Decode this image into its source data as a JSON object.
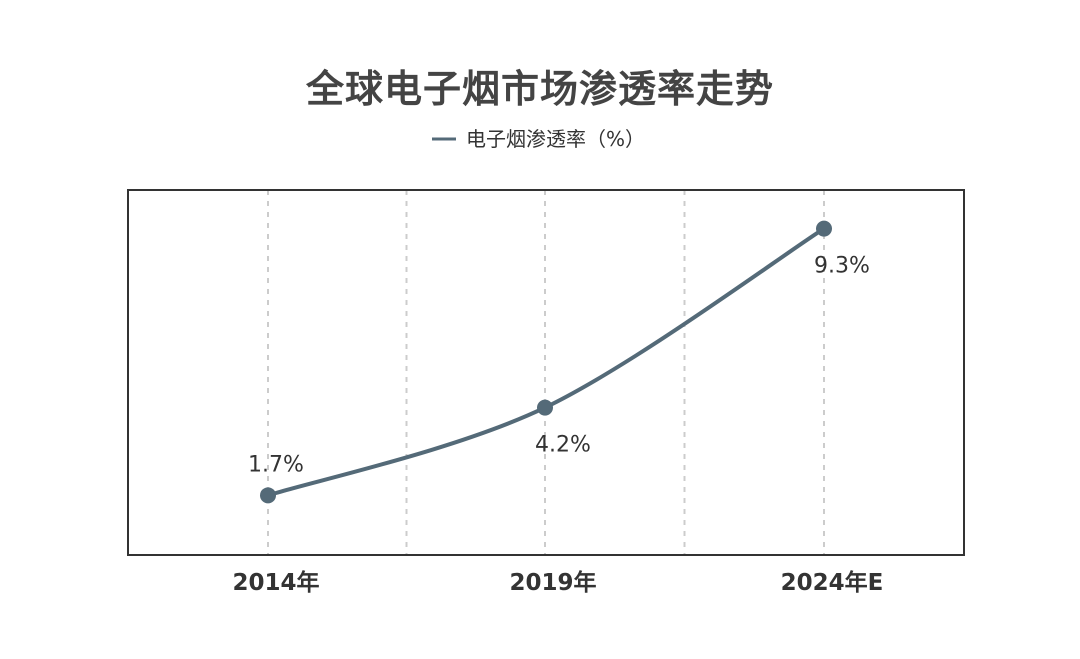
{
  "chart_data": {
    "type": "line",
    "title": "全球电子烟市场渗透率走势",
    "categories": [
      "2014年",
      "2019年",
      "2024年E"
    ],
    "series": [
      {
        "name": "电子烟渗透率（%）",
        "values": [
          1.7,
          4.2,
          9.3
        ],
        "data_labels": [
          "1.7%",
          "4.2%",
          "9.3%"
        ],
        "color": "#546a78"
      }
    ],
    "legend_position": "top-center",
    "grid": "vertical-dashed",
    "frame_color": "#333333",
    "grid_color": "#cccccc"
  }
}
